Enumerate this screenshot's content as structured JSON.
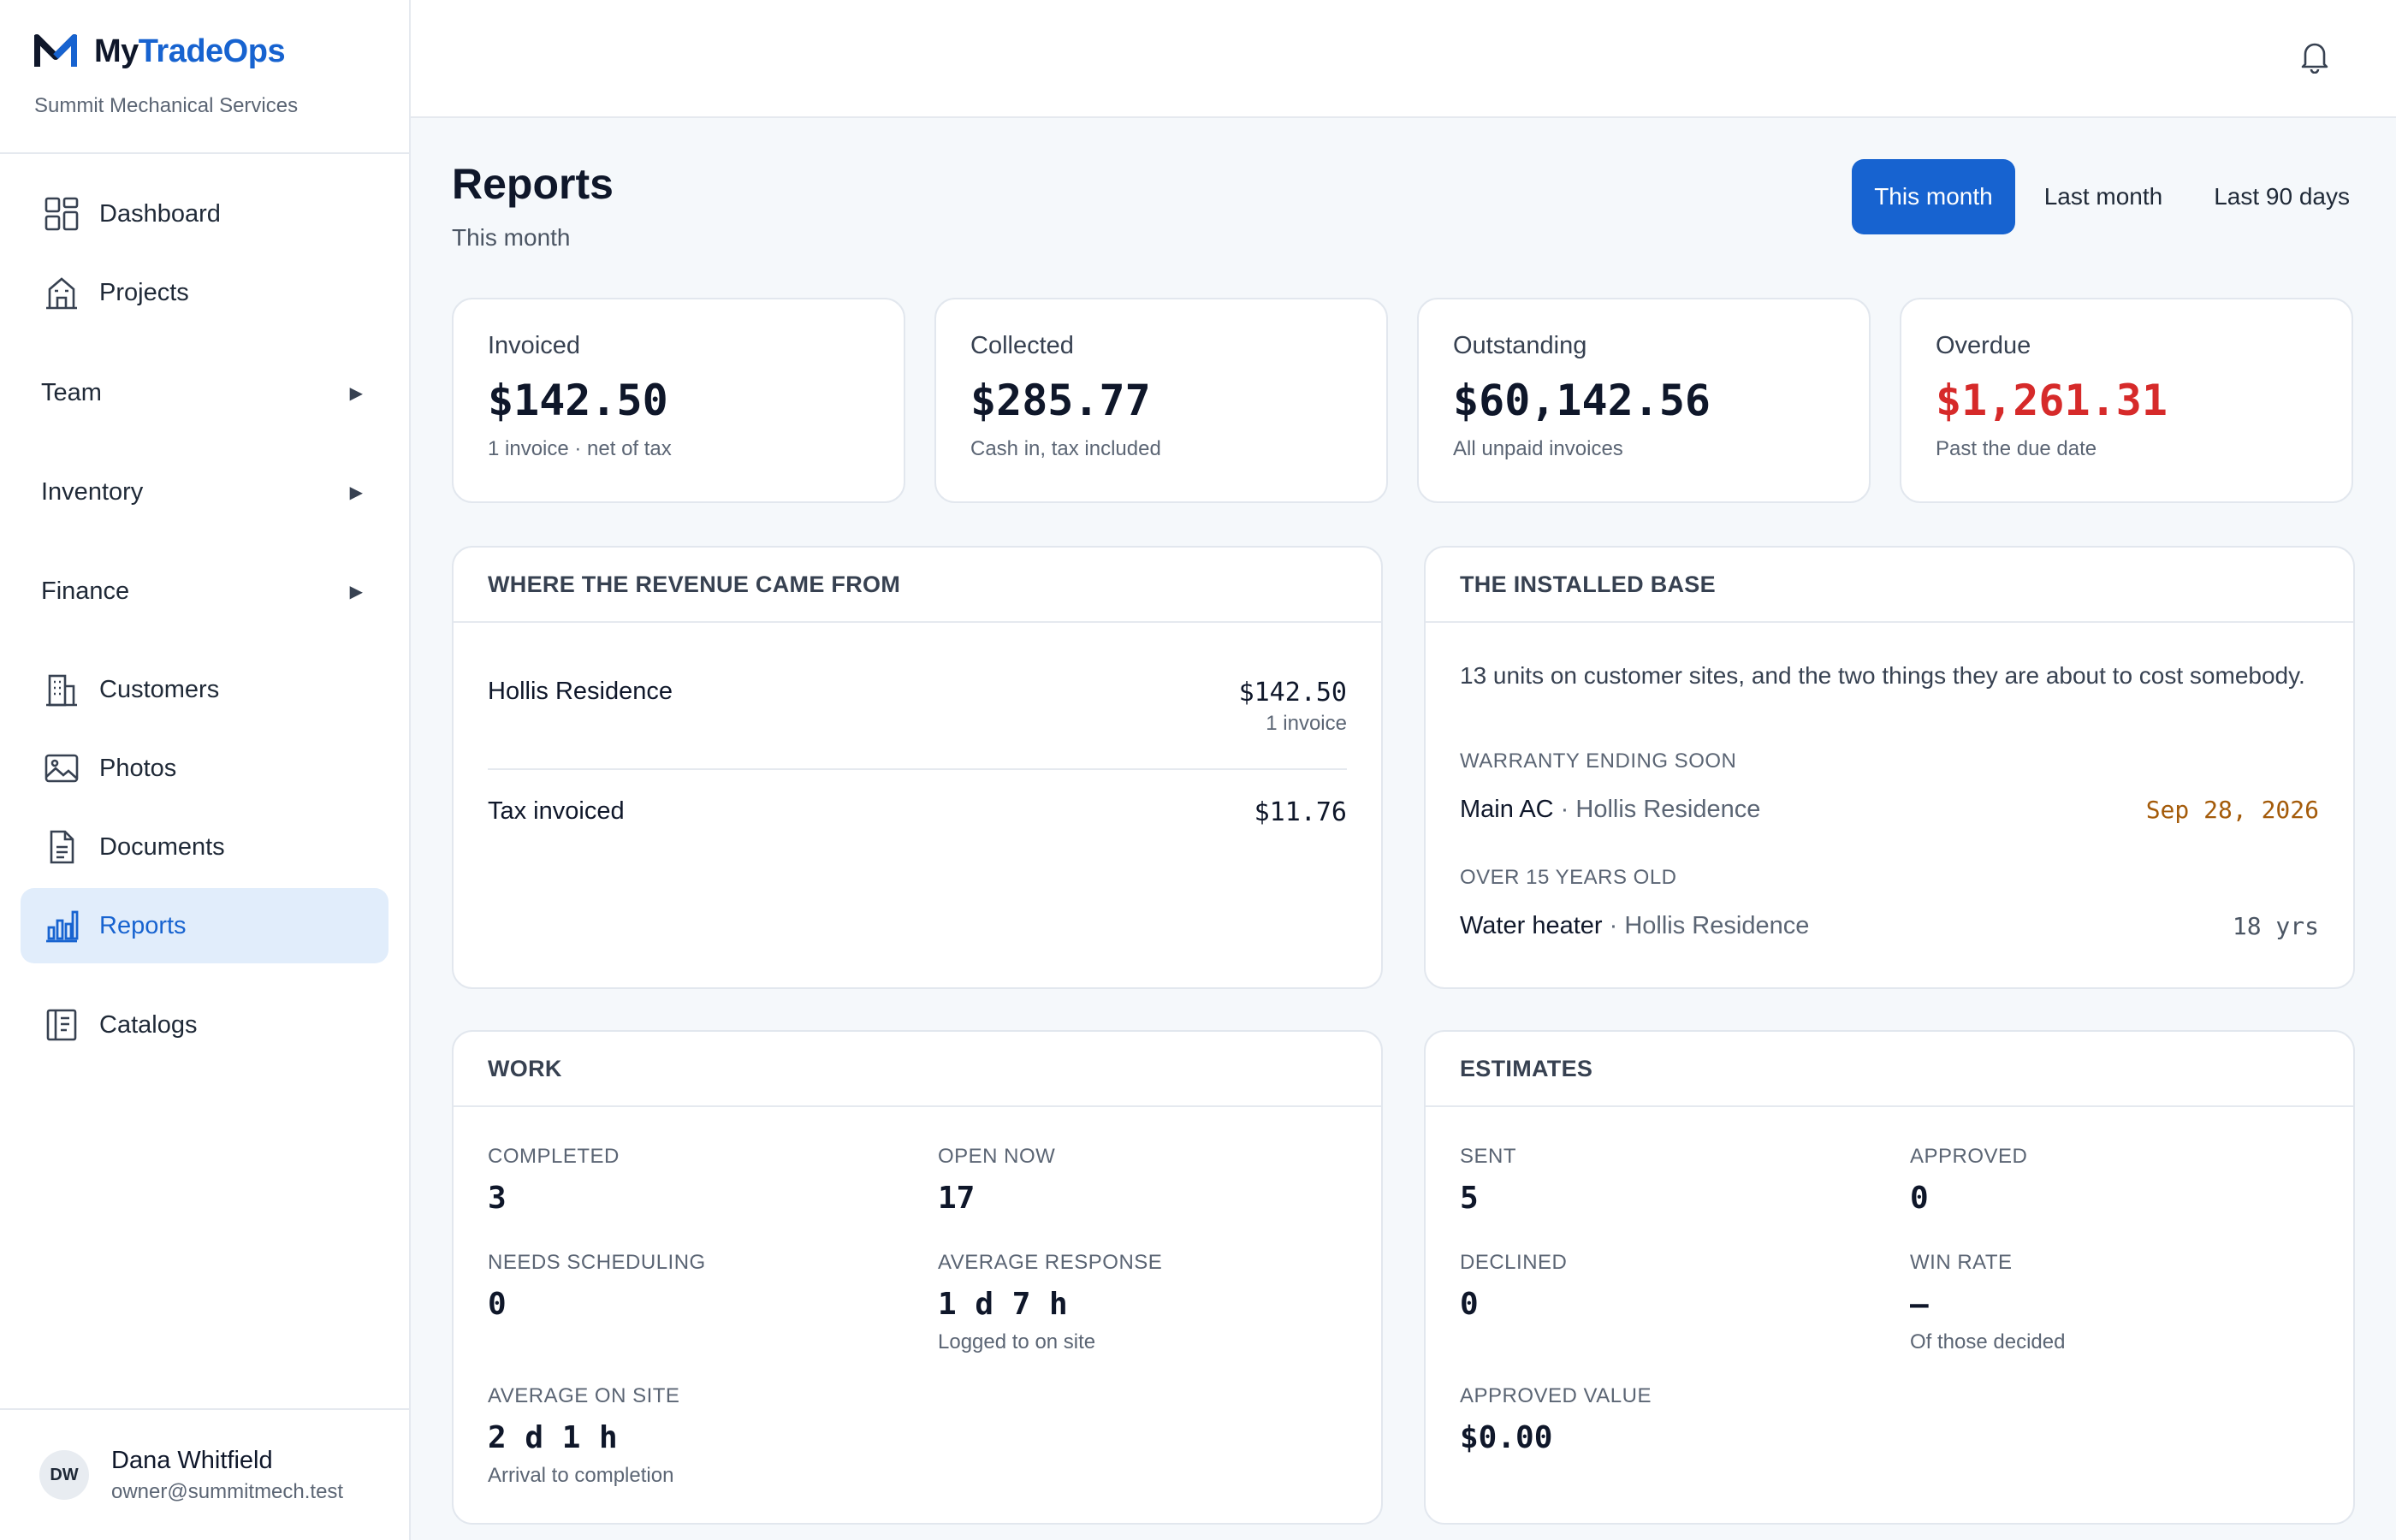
{
  "brand": {
    "name_part1": "My",
    "name_part2": "TradeOps",
    "company": "Summit Mechanical Services",
    "logo_color": "#1763d0"
  },
  "sidebar": {
    "items": [
      {
        "label": "Dashboard",
        "icon": "dashboard-grid-icon"
      },
      {
        "label": "Projects",
        "icon": "building-icon"
      },
      {
        "label": "Team",
        "icon": "chevron-right-icon",
        "group": true
      },
      {
        "label": "Inventory",
        "icon": "chevron-right-icon",
        "group": true
      },
      {
        "label": "Finance",
        "icon": "chevron-right-icon",
        "group": true
      },
      {
        "label": "Customers",
        "icon": "office-building-icon"
      },
      {
        "label": "Photos",
        "icon": "image-icon"
      },
      {
        "label": "Documents",
        "icon": "document-icon"
      },
      {
        "label": "Reports",
        "icon": "bar-chart-icon",
        "active": true
      },
      {
        "label": "Catalogs",
        "icon": "book-icon"
      }
    ],
    "group_arrow": "▶"
  },
  "user": {
    "initials": "DW",
    "name": "Dana Whitfield",
    "email": "owner@summitmech.test"
  },
  "header": {
    "title": "Reports",
    "subtitle": "This month",
    "ranges": [
      "This month",
      "Last month",
      "Last 90 days"
    ],
    "active_range": "This month"
  },
  "kpis": [
    {
      "label": "Invoiced",
      "value": "$142.50",
      "sub": "1 invoice · net of tax"
    },
    {
      "label": "Collected",
      "value": "$285.77",
      "sub": "Cash in, tax included"
    },
    {
      "label": "Outstanding",
      "value": "$60,142.56",
      "sub": "All unpaid invoices"
    },
    {
      "label": "Overdue",
      "value": "$1,261.31",
      "sub": "Past the due date",
      "color": "#d62a2a"
    }
  ],
  "revenue": {
    "title": "WHERE THE REVENUE CAME FROM",
    "rows": [
      {
        "name": "Hollis Residence",
        "amount": "$142.50",
        "sub": "1 invoice"
      },
      {
        "name": "Tax invoiced",
        "amount": "$11.76"
      }
    ]
  },
  "installed_base": {
    "title": "THE INSTALLED BASE",
    "description": "13 units on customer sites, and the two things they are about to cost somebody.",
    "warranty_heading": "WARRANTY ENDING SOON",
    "warranty_item": {
      "name": "Main AC",
      "separator": " · ",
      "site": "Hollis Residence",
      "value": "Sep 28, 2026",
      "color": "#a45b0a"
    },
    "age_heading": "OVER 15 YEARS OLD",
    "age_item": {
      "name": "Water heater",
      "separator": " · ",
      "site": "Hollis Residence",
      "value": "18 yrs"
    }
  },
  "work": {
    "title": "WORK",
    "completed": {
      "label": "COMPLETED",
      "value": "3"
    },
    "open_now": {
      "label": "OPEN NOW",
      "value": "17"
    },
    "needs_scheduling": {
      "label": "NEEDS SCHEDULING",
      "value": "0"
    },
    "average_response": {
      "label": "AVERAGE RESPONSE",
      "value": "1 d 7 h",
      "note": "Logged to on site"
    },
    "average_on_site": {
      "label": "AVERAGE ON SITE",
      "value": "2 d 1 h",
      "note": "Arrival to completion"
    }
  },
  "estimates": {
    "title": "ESTIMATES",
    "sent": {
      "label": "SENT",
      "value": "5"
    },
    "approved": {
      "label": "APPROVED",
      "value": "0"
    },
    "declined": {
      "label": "DECLINED",
      "value": "0"
    },
    "win_rate": {
      "label": "WIN RATE",
      "value": "—",
      "note": "Of those decided"
    },
    "approved_value": {
      "label": "APPROVED VALUE",
      "value": "$0.00"
    }
  }
}
